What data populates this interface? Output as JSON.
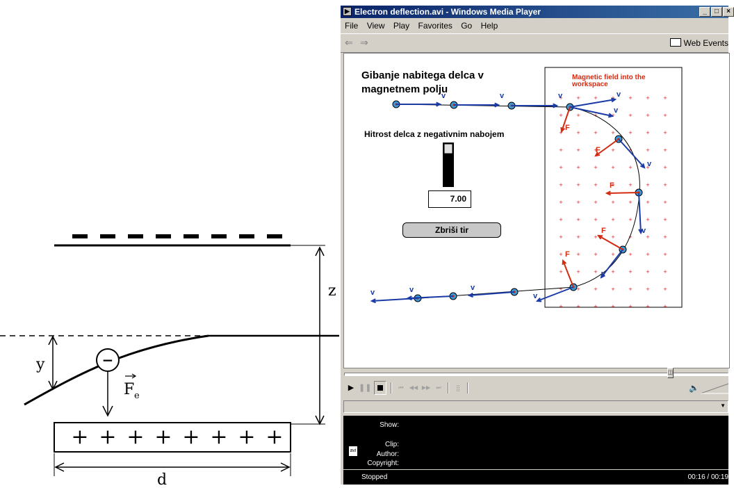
{
  "diagram": {
    "top_plate_signs": [
      "−",
      "−",
      "−",
      "−",
      "−",
      "−",
      "−",
      "−"
    ],
    "bottom_plate_signs": [
      "+",
      "+",
      "+",
      "+",
      "+",
      "+",
      "+",
      "+"
    ],
    "label_z": "z",
    "label_y": "y",
    "label_d": "d",
    "force_label": "F",
    "force_sub": "e",
    "charge_sign": "−"
  },
  "wmp": {
    "title": "Electron deflection.avi - Windows Media Player",
    "window_buttons": [
      "_",
      "□",
      "×"
    ],
    "menu": [
      "File",
      "View",
      "Play",
      "Favorites",
      "Go",
      "Help"
    ],
    "web_events": "Web Events",
    "video": {
      "heading_line1": "Gibanje nabitega delca v",
      "heading_line2": "magnetnem polju",
      "speed_label": "Hitrost delca z negativnim nabojem",
      "speed_value": "7.00",
      "speed_level": 0.1,
      "clear_button": "Zbriši tir",
      "field_label_line1": "Magnetic field into the",
      "field_label_line2": "workspace",
      "v_label": "v",
      "f_label": "F",
      "plus": "+"
    },
    "progress": 0.84,
    "info": {
      "show_label": "Show:",
      "clip_label": "Clip:",
      "author_label": "Author:",
      "copyright_label": "Copyright:"
    },
    "status": "Stopped",
    "time": "00:16 / 00:19",
    "colors": {
      "vector_v": "#1a3aa6",
      "vector_f": "#d42a10",
      "field_plus": "#e02020",
      "title_blue": "#0a246a"
    }
  }
}
